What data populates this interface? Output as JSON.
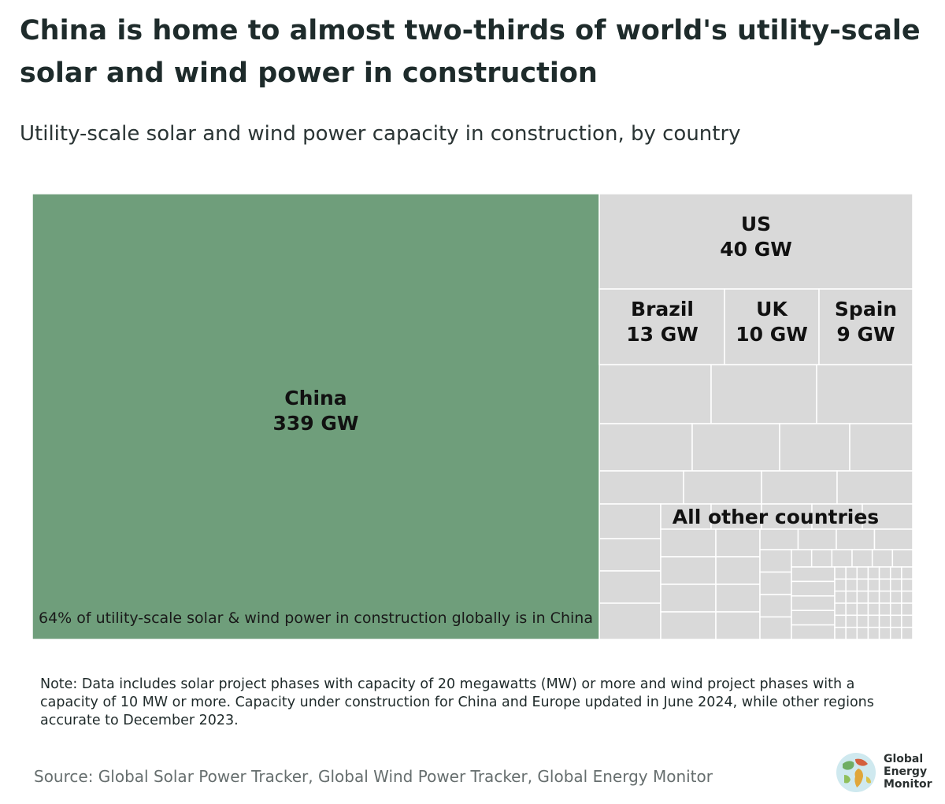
{
  "header": {
    "title": "China is home to almost two-thirds of world's utility-scale solar and wind power in construction",
    "subtitle": "Utility-scale solar and wind power capacity in construction, by country"
  },
  "chart_data": {
    "type": "treemap",
    "unit": "GW",
    "items": [
      {
        "name": "China",
        "value": 339,
        "label": "339 GW",
        "color": "#6f9e7b"
      },
      {
        "name": "US",
        "value": 40,
        "label": "40 GW",
        "color": "#d9d9d9"
      },
      {
        "name": "Brazil",
        "value": 13,
        "label": "13 GW",
        "color": "#d9d9d9"
      },
      {
        "name": "UK",
        "value": 10,
        "label": "10 GW",
        "color": "#d9d9d9"
      },
      {
        "name": "Spain",
        "value": 9,
        "label": "9 GW",
        "color": "#d9d9d9"
      }
    ],
    "other_group_label": "All other countries",
    "annotation": "64% of utility-scale solar & wind power in construction globally is in China"
  },
  "note": "Note: Data includes solar project phases with capacity of 20 megawatts (MW) or more and wind project phases with a capacity of 10 MW or more. Capacity under construction for China and Europe updated in June 2024, while other regions accurate to December 2023.",
  "source": "Source: Global Solar Power Tracker, Global Wind Power Tracker, Global Energy Monitor",
  "logo": {
    "icon": "globe-icon",
    "lines": [
      "Global",
      "Energy",
      "Monitor"
    ]
  }
}
